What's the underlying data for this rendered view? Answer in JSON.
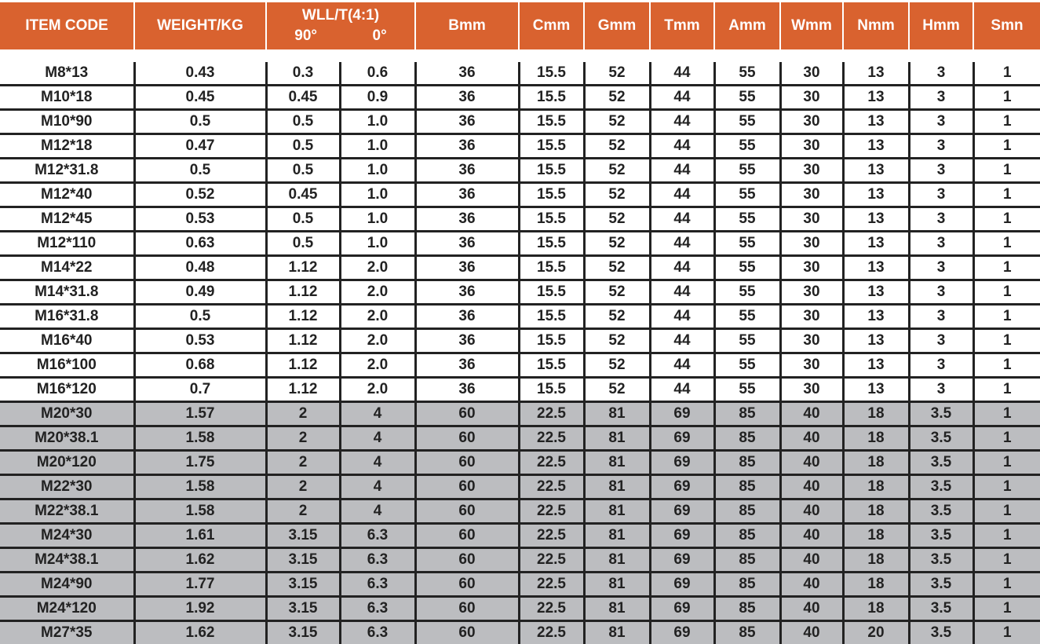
{
  "colors": {
    "header": "#d9622f",
    "shaded_row": "#bcbdc0"
  },
  "headers": {
    "item_code": "ITEM CODE",
    "weight": "WEIGHT/KG",
    "wll": "WLL/T(4:1)",
    "wll_90": "90°",
    "wll_0": "0°",
    "b": "Bmm",
    "c": "Cmm",
    "g": "Gmm",
    "t": "Tmm",
    "a": "Amm",
    "w": "Wmm",
    "n": "Nmm",
    "h": "Hmm",
    "s": "Smn"
  },
  "rows": [
    [
      "M8*13",
      "0.43",
      "0.3",
      "0.6",
      "36",
      "15.5",
      "52",
      "44",
      "55",
      "30",
      "13",
      "3",
      "1"
    ],
    [
      "M10*18",
      "0.45",
      "0.45",
      "0.9",
      "36",
      "15.5",
      "52",
      "44",
      "55",
      "30",
      "13",
      "3",
      "1"
    ],
    [
      "M10*90",
      "0.5",
      "0.5",
      "1.0",
      "36",
      "15.5",
      "52",
      "44",
      "55",
      "30",
      "13",
      "3",
      "1"
    ],
    [
      "M12*18",
      "0.47",
      "0.5",
      "1.0",
      "36",
      "15.5",
      "52",
      "44",
      "55",
      "30",
      "13",
      "3",
      "1"
    ],
    [
      "M12*31.8",
      "0.5",
      "0.5",
      "1.0",
      "36",
      "15.5",
      "52",
      "44",
      "55",
      "30",
      "13",
      "3",
      "1"
    ],
    [
      "M12*40",
      "0.52",
      "0.45",
      "1.0",
      "36",
      "15.5",
      "52",
      "44",
      "55",
      "30",
      "13",
      "3",
      "1"
    ],
    [
      "M12*45",
      "0.53",
      "0.5",
      "1.0",
      "36",
      "15.5",
      "52",
      "44",
      "55",
      "30",
      "13",
      "3",
      "1"
    ],
    [
      "M12*110",
      "0.63",
      "0.5",
      "1.0",
      "36",
      "15.5",
      "52",
      "44",
      "55",
      "30",
      "13",
      "3",
      "1"
    ],
    [
      "M14*22",
      "0.48",
      "1.12",
      "2.0",
      "36",
      "15.5",
      "52",
      "44",
      "55",
      "30",
      "13",
      "3",
      "1"
    ],
    [
      "M14*31.8",
      "0.49",
      "1.12",
      "2.0",
      "36",
      "15.5",
      "52",
      "44",
      "55",
      "30",
      "13",
      "3",
      "1"
    ],
    [
      "M16*31.8",
      "0.5",
      "1.12",
      "2.0",
      "36",
      "15.5",
      "52",
      "44",
      "55",
      "30",
      "13",
      "3",
      "1"
    ],
    [
      "M16*40",
      "0.53",
      "1.12",
      "2.0",
      "36",
      "15.5",
      "52",
      "44",
      "55",
      "30",
      "13",
      "3",
      "1"
    ],
    [
      "M16*100",
      "0.68",
      "1.12",
      "2.0",
      "36",
      "15.5",
      "52",
      "44",
      "55",
      "30",
      "13",
      "3",
      "1"
    ],
    [
      "M16*120",
      "0.7",
      "1.12",
      "2.0",
      "36",
      "15.5",
      "52",
      "44",
      "55",
      "30",
      "13",
      "3",
      "1"
    ],
    [
      "M20*30",
      "1.57",
      "2",
      "4",
      "60",
      "22.5",
      "81",
      "69",
      "85",
      "40",
      "18",
      "3.5",
      "1"
    ],
    [
      "M20*38.1",
      "1.58",
      "2",
      "4",
      "60",
      "22.5",
      "81",
      "69",
      "85",
      "40",
      "18",
      "3.5",
      "1"
    ],
    [
      "M20*120",
      "1.75",
      "2",
      "4",
      "60",
      "22.5",
      "81",
      "69",
      "85",
      "40",
      "18",
      "3.5",
      "1"
    ],
    [
      "M22*30",
      "1.58",
      "2",
      "4",
      "60",
      "22.5",
      "81",
      "69",
      "85",
      "40",
      "18",
      "3.5",
      "1"
    ],
    [
      "M22*38.1",
      "1.58",
      "2",
      "4",
      "60",
      "22.5",
      "81",
      "69",
      "85",
      "40",
      "18",
      "3.5",
      "1"
    ],
    [
      "M24*30",
      "1.61",
      "3.15",
      "6.3",
      "60",
      "22.5",
      "81",
      "69",
      "85",
      "40",
      "18",
      "3.5",
      "1"
    ],
    [
      "M24*38.1",
      "1.62",
      "3.15",
      "6.3",
      "60",
      "22.5",
      "81",
      "69",
      "85",
      "40",
      "18",
      "3.5",
      "1"
    ],
    [
      "M24*90",
      "1.77",
      "3.15",
      "6.3",
      "60",
      "22.5",
      "81",
      "69",
      "85",
      "40",
      "18",
      "3.5",
      "1"
    ],
    [
      "M24*120",
      "1.92",
      "3.15",
      "6.3",
      "60",
      "22.5",
      "81",
      "69",
      "85",
      "40",
      "18",
      "3.5",
      "1"
    ],
    [
      "M27*35",
      "1.62",
      "3.15",
      "6.3",
      "60",
      "22.5",
      "81",
      "69",
      "85",
      "40",
      "20",
      "3.5",
      "1"
    ]
  ],
  "shaded_from_row": 14
}
